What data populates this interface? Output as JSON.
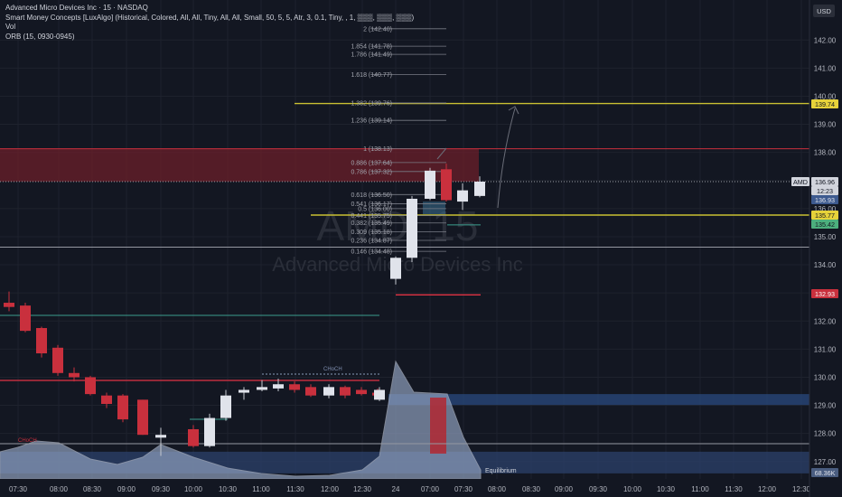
{
  "header": {
    "symbol_line": "Advanced Micro Devices Inc · 15 · NASDAQ",
    "indicator_line": "Smart Money Concepts [LuxAlgo] (Historical, Colored, All, All, Tiny, All, All, Small, 50, 5, 5, Atr, 3, 0.1, Tiny, , 1, ▒▒▒, ▒▒▒, ▒▒▒)",
    "vol_label": "Vol",
    "orb_label": "ORB (15, 0930-0945)"
  },
  "currency": "USD",
  "watermark": {
    "ticker": "AMD, 15",
    "name": "Advanced Micro Devices Inc"
  },
  "colors": {
    "background": "#131722",
    "up": "#e0e3eb",
    "down": "#c9303d",
    "grid": "#1e222d",
    "axis_text": "#b2b5be",
    "fib": "#787b86",
    "orb": "#c9c032",
    "demand_zone": "#2a4a7f",
    "supply_zone": "#6b1f29",
    "volume_area": "#8e9fbd",
    "volume_bar": "#b22833",
    "equilibrium": "#2b3f66",
    "price_tag": "#e0e3eb"
  },
  "chart_data": {
    "type": "candlestick",
    "title": "Advanced Micro Devices Inc · 15 · NASDAQ",
    "x_ticks": [
      "07:30",
      "08:00",
      "08:30",
      "09:00",
      "09:30",
      "10:00",
      "10:30",
      "11:00",
      "11:30",
      "12:00",
      "12:30",
      "24",
      "07:00",
      "07:30",
      "08:00",
      "08:30",
      "09:00",
      "09:30",
      "10:00",
      "10:30",
      "11:00",
      "11:30",
      "12:00",
      "12:30"
    ],
    "y_ticks": [
      "142.00",
      "141.00",
      "140.00",
      "139.00",
      "138.00",
      "137.00",
      "136.00",
      "135.00",
      "134.00",
      "133.00",
      "132.00",
      "131.00",
      "130.00",
      "129.00",
      "128.00",
      "127.00"
    ],
    "ylim": [
      126.6,
      143.1
    ],
    "candles": [
      {
        "t": "07:30",
        "o": 132.65,
        "h": 133.05,
        "l": 132.35,
        "c": 132.5
      },
      {
        "t": "07:45",
        "o": 132.55,
        "h": 132.65,
        "l": 131.6,
        "c": 131.65
      },
      {
        "t": "08:00",
        "o": 131.75,
        "h": 131.8,
        "l": 130.7,
        "c": 130.85
      },
      {
        "t": "08:15",
        "o": 131.05,
        "h": 131.15,
        "l": 130.05,
        "c": 130.15
      },
      {
        "t": "08:30",
        "o": 130.15,
        "h": 130.35,
        "l": 129.85,
        "c": 130.0
      },
      {
        "t": "08:45",
        "o": 130.0,
        "h": 130.05,
        "l": 129.35,
        "c": 129.4
      },
      {
        "t": "09:00",
        "o": 129.35,
        "h": 129.45,
        "l": 128.9,
        "c": 129.05
      },
      {
        "t": "09:15",
        "o": 129.35,
        "h": 129.4,
        "l": 128.4,
        "c": 128.5
      },
      {
        "t": "09:30",
        "o": 129.2,
        "h": 129.2,
        "l": 127.95,
        "c": 127.95
      },
      {
        "t": "09:45",
        "o": 127.85,
        "h": 128.2,
        "l": 127.2,
        "c": 127.95
      },
      {
        "t": "10:00",
        "o": 128.15,
        "h": 128.3,
        "l": 127.5,
        "c": 127.55
      },
      {
        "t": "10:15",
        "o": 127.55,
        "h": 128.7,
        "l": 127.5,
        "c": 128.55
      },
      {
        "t": "10:30",
        "o": 128.55,
        "h": 129.55,
        "l": 128.45,
        "c": 129.35
      },
      {
        "t": "10:45",
        "o": 129.45,
        "h": 129.65,
        "l": 129.2,
        "c": 129.55
      },
      {
        "t": "11:00",
        "o": 129.55,
        "h": 129.9,
        "l": 129.5,
        "c": 129.65
      },
      {
        "t": "11:15",
        "o": 129.6,
        "h": 129.95,
        "l": 129.5,
        "c": 129.75
      },
      {
        "t": "11:30",
        "o": 129.75,
        "h": 129.85,
        "l": 129.45,
        "c": 129.55
      },
      {
        "t": "11:45",
        "o": 129.65,
        "h": 129.75,
        "l": 129.3,
        "c": 129.35
      },
      {
        "t": "12:00",
        "o": 129.35,
        "h": 129.75,
        "l": 129.25,
        "c": 129.65
      },
      {
        "t": "12:15",
        "o": 129.65,
        "h": 129.7,
        "l": 129.25,
        "c": 129.35
      },
      {
        "t": "12:30",
        "o": 129.55,
        "h": 129.65,
        "l": 129.35,
        "c": 129.4
      },
      {
        "t": "12:45",
        "o": 129.45,
        "h": 129.6,
        "l": 129.25,
        "c": 129.35
      },
      {
        "t": "13:00",
        "o": 129.2,
        "h": 129.65,
        "l": 129.15,
        "c": 129.55
      },
      {
        "t": "06:30",
        "o": 133.5,
        "h": 134.3,
        "l": 133.3,
        "c": 134.25
      },
      {
        "t": "06:45",
        "o": 134.25,
        "h": 136.45,
        "l": 134.1,
        "c": 136.35
      },
      {
        "t": "07:00",
        "o": 136.35,
        "h": 137.45,
        "l": 136.3,
        "c": 137.35
      },
      {
        "t": "07:15",
        "o": 137.4,
        "h": 137.6,
        "l": 136.25,
        "c": 136.3
      },
      {
        "t": "07:30",
        "o": 136.25,
        "h": 136.9,
        "l": 135.95,
        "c": 136.65
      },
      {
        "t": "07:45",
        "o": 136.45,
        "h": 137.15,
        "l": 136.4,
        "c": 136.96
      }
    ],
    "volume_axis_label": "68.36K",
    "equilibrium_label": "Equilibrium",
    "choch_labels": [
      "CHoCH",
      "CHoCH"
    ],
    "fib_levels": [
      {
        "label": "2 (142.40)",
        "price": 142.4
      },
      {
        "label": "1.854 (141.78)",
        "price": 141.78
      },
      {
        "label": "1.786 (141.49)",
        "price": 141.49
      },
      {
        "label": "1.618 (140.77)",
        "price": 140.77
      },
      {
        "label": "1.382 (139.76)",
        "price": 139.76
      },
      {
        "label": "1.236 (139.14)",
        "price": 139.14
      },
      {
        "label": "1 (138.13)",
        "price": 138.13
      },
      {
        "label": "0.886 (137.64)",
        "price": 137.64
      },
      {
        "label": "0.786 (137.32)",
        "price": 137.32
      },
      {
        "label": "0.618 (136.50)",
        "price": 136.5
      },
      {
        "label": "0.541 (136.17)",
        "price": 136.17
      },
      {
        "label": "0.5 (136.00)",
        "price": 136.0
      },
      {
        "label": "0.441 (135.75)",
        "price": 135.75
      },
      {
        "label": "0.382 (135.49)",
        "price": 135.49
      },
      {
        "label": "0.309 (135.18)",
        "price": 135.18
      },
      {
        "label": "0.236 (134.87)",
        "price": 134.87
      },
      {
        "label": "0.146 (134.48)",
        "price": 134.48
      }
    ],
    "price_tags": [
      {
        "value": "139.74",
        "kind": "orb"
      },
      {
        "value": "AMD",
        "kind": "symbol"
      },
      {
        "value": "136.96",
        "kind": "last"
      },
      {
        "value": "12:23",
        "kind": "countdown"
      },
      {
        "value": "136.93",
        "kind": "demand"
      },
      {
        "value": "135.77",
        "kind": "orb"
      },
      {
        "value": "135.42",
        "kind": "green"
      },
      {
        "value": "132.93",
        "kind": "red"
      }
    ]
  }
}
